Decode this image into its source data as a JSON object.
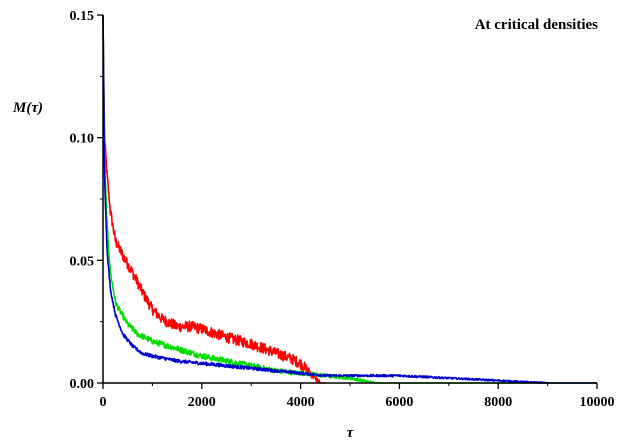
{
  "chart_data": {
    "type": "line",
    "xlabel": "τ",
    "ylabel": "M(τ)",
    "annotation": "At critical densities",
    "xlim": [
      0,
      10000
    ],
    "ylim": [
      0,
      0.15
    ],
    "x_ticks": [
      0,
      2000,
      4000,
      6000,
      8000,
      10000
    ],
    "x_tick_labels": [
      "0",
      "2000",
      "4000",
      "6000",
      "8000",
      "10000"
    ],
    "y_ticks": [
      0,
      0.05,
      0.1,
      0.15
    ],
    "y_tick_labels": [
      "0.00",
      "0.05",
      "0.10",
      "0.15"
    ],
    "grid": false,
    "legend": "none",
    "series": [
      {
        "color": "#ff0000",
        "noise": 0.0022,
        "x": [
          0,
          30,
          80,
          150,
          250,
          400,
          600,
          800,
          1000,
          1200,
          1500,
          1800,
          2000,
          2300,
          2600,
          3000,
          3400,
          3800,
          4000,
          4200,
          4400,
          4500
        ],
        "y": [
          0.15,
          0.1,
          0.085,
          0.07,
          0.058,
          0.052,
          0.045,
          0.037,
          0.03,
          0.026,
          0.023,
          0.023,
          0.022,
          0.02,
          0.018,
          0.016,
          0.013,
          0.01,
          0.008,
          0.004,
          0.0,
          0.0
        ]
      },
      {
        "color": "#00dd00",
        "noise": 0.0012,
        "x": [
          0,
          30,
          80,
          150,
          250,
          350,
          500,
          700,
          1000,
          1500,
          2000,
          2500,
          3000,
          3500,
          4000,
          4500,
          5000,
          5500,
          6000,
          7000,
          8000,
          9000,
          10000
        ],
        "y": [
          0.15,
          0.09,
          0.065,
          0.045,
          0.033,
          0.029,
          0.024,
          0.02,
          0.017,
          0.014,
          0.011,
          0.009,
          0.007,
          0.005,
          0.004,
          0.003,
          0.002,
          0.0,
          0.0,
          0.0,
          0.0,
          0.0,
          0.0
        ]
      },
      {
        "color": "#0000cc",
        "noise": 0.0007,
        "x": [
          0,
          30,
          80,
          150,
          250,
          400,
          600,
          800,
          1000,
          1500,
          2000,
          2500,
          3000,
          3500,
          4000,
          4500,
          5000,
          5500,
          6000,
          6500,
          7000,
          7500,
          8000,
          8500,
          9000,
          10000
        ],
        "y": [
          0.15,
          0.085,
          0.055,
          0.038,
          0.028,
          0.02,
          0.015,
          0.012,
          0.011,
          0.009,
          0.008,
          0.007,
          0.006,
          0.005,
          0.004,
          0.003,
          0.003,
          0.003,
          0.003,
          0.0025,
          0.002,
          0.0015,
          0.001,
          0.0005,
          0.0,
          0.0
        ]
      }
    ]
  }
}
